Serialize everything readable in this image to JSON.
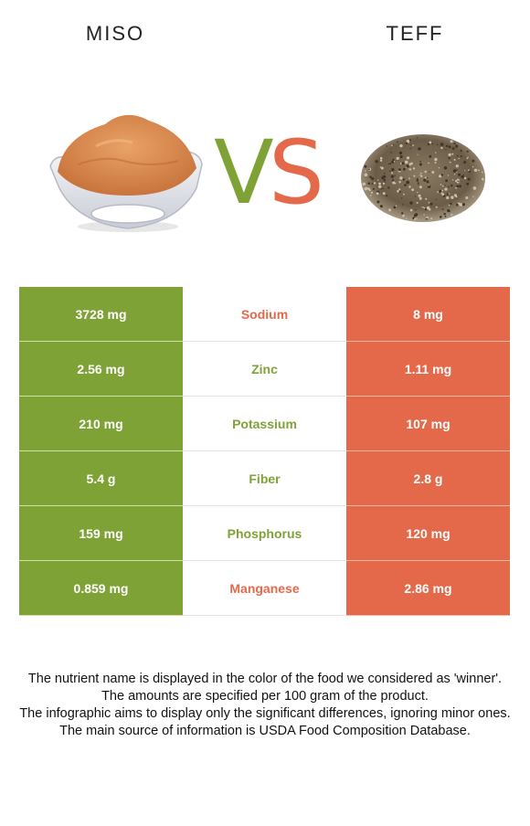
{
  "foods": {
    "left": "MISO",
    "right": "TEFF",
    "vs": "VS"
  },
  "colors": {
    "left_winner": "#7ea235",
    "right_winner": "#e4694a"
  },
  "rows": [
    {
      "left": "3728 mg",
      "nutrient": "Sodium",
      "right": "8 mg",
      "winner": "right"
    },
    {
      "left": "2.56 mg",
      "nutrient": "Zinc",
      "right": "1.11 mg",
      "winner": "left"
    },
    {
      "left": "210 mg",
      "nutrient": "Potassium",
      "right": "107 mg",
      "winner": "left"
    },
    {
      "left": "5.4 g",
      "nutrient": "Fiber",
      "right": "2.8 g",
      "winner": "left"
    },
    {
      "left": "159 mg",
      "nutrient": "Phosphorus",
      "right": "120 mg",
      "winner": "left"
    },
    {
      "left": "0.859 mg",
      "nutrient": "Manganese",
      "right": "2.86 mg",
      "winner": "right"
    }
  ],
  "footer": {
    "line1": "The nutrient name is displayed in the color of the food we considered as 'winner'.",
    "line2": "The amounts are specified per 100 gram of the product.",
    "line3": "The infographic aims to display only the significant differences, ignoring minor ones.",
    "line4": "The main source of information is USDA Food Composition Database."
  }
}
